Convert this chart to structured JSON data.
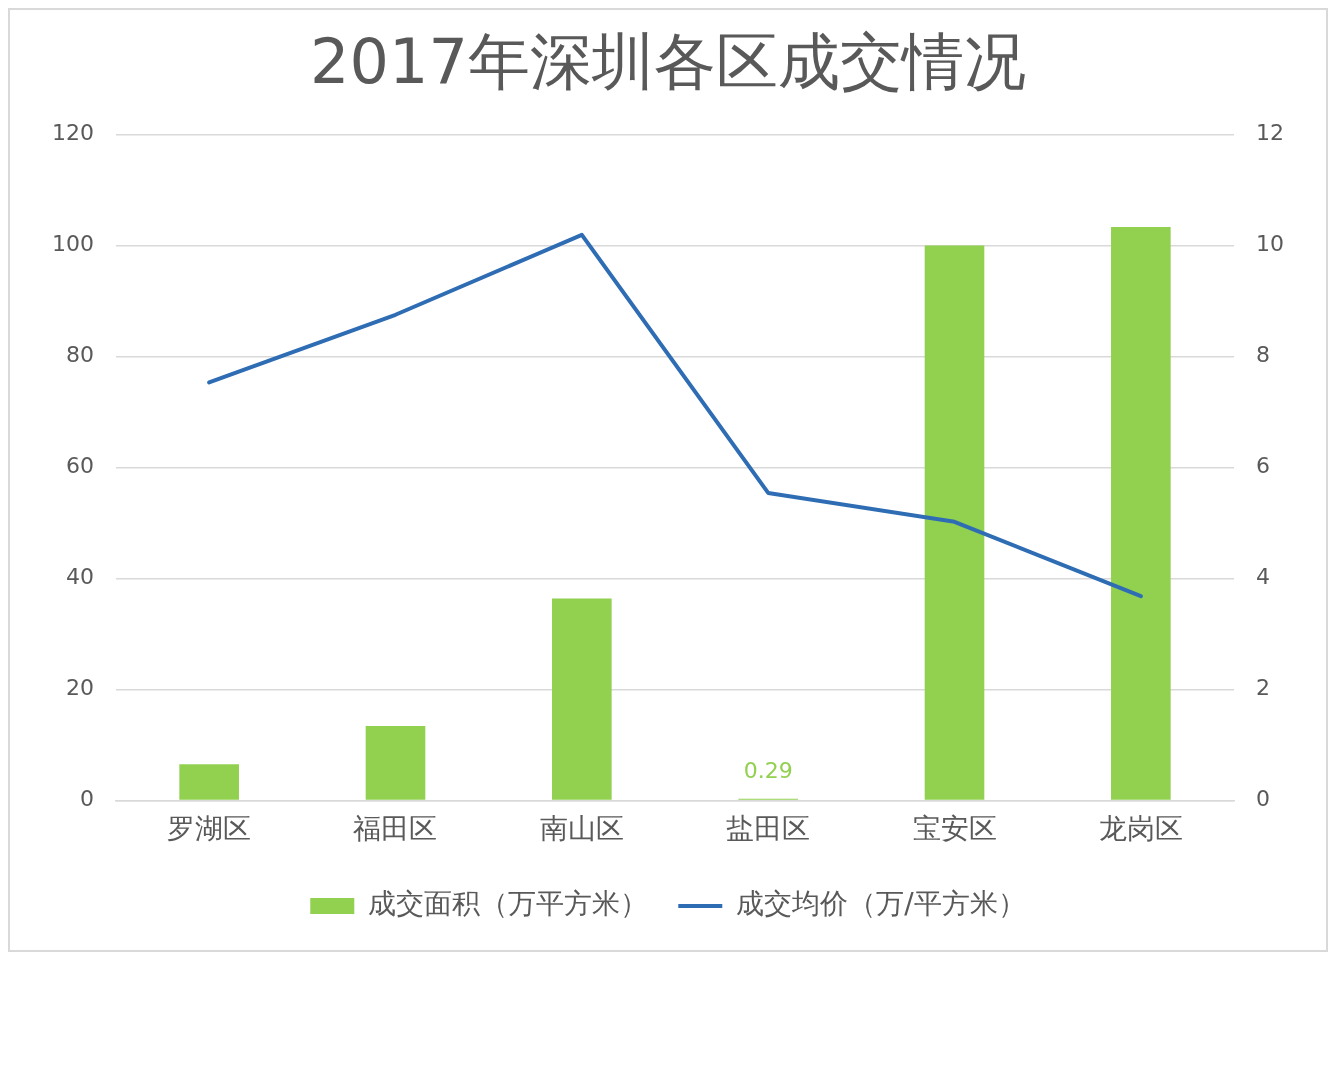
{
  "chart_data": {
    "type": "bar",
    "title": "2017年深圳各区成交情况",
    "categories": [
      "罗湖区",
      "福田区",
      "南山区",
      "盐田区",
      "宝安区",
      "龙岗区"
    ],
    "series": [
      {
        "name": "成交面积（万平方米）",
        "color": "#92d050",
        "values": [
          6.5,
          13.4,
          36.4,
          0.29,
          100,
          103.3
        ],
        "value_labels": [
          null,
          null,
          null,
          "0.29",
          null,
          null
        ]
      },
      {
        "name": "成交均价（万/平方米）",
        "type": "line",
        "axis": "y2",
        "color": "#2e6db4",
        "values": [
          7.53,
          8.75,
          10.19,
          5.54,
          5.02,
          3.68
        ]
      }
    ],
    "ylim": [
      0,
      120
    ],
    "yticks": [
      0,
      20,
      40,
      60,
      80,
      100,
      120
    ],
    "y2lim": [
      0,
      12
    ],
    "y2ticks": [
      0,
      2,
      4,
      6,
      8,
      10,
      12
    ],
    "grid": "y",
    "legend": "bottom"
  }
}
